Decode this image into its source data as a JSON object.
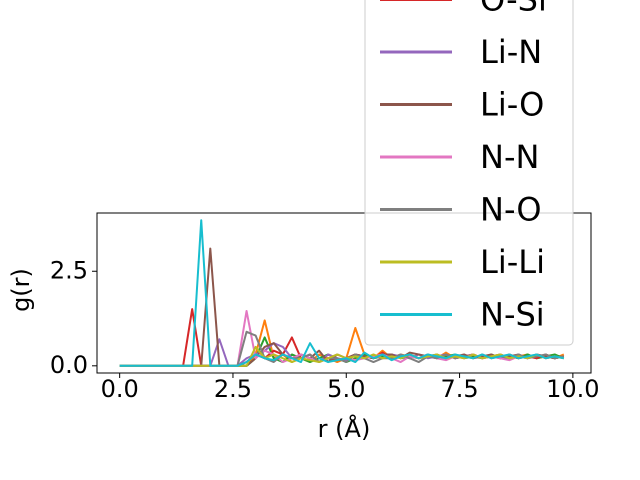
{
  "chart_data": {
    "type": "line",
    "xlabel": "r (Å)",
    "ylabel": "g(r)",
    "x": [
      0,
      0.2,
      0.4,
      0.6,
      0.8,
      1.0,
      1.2,
      1.4,
      1.6,
      1.8,
      2.0,
      2.2,
      2.4,
      2.6,
      2.8,
      3.0,
      3.2,
      3.4,
      3.6,
      3.8,
      4.0,
      4.2,
      4.4,
      4.6,
      4.8,
      5.0,
      5.2,
      5.4,
      5.6,
      5.8,
      6.0,
      6.2,
      6.4,
      6.6,
      6.8,
      7.0,
      7.2,
      7.4,
      7.6,
      7.8,
      8.0,
      8.2,
      8.4,
      8.6,
      8.8,
      9.0,
      9.2,
      9.4,
      9.6,
      9.8
    ],
    "xlim": [
      -0.5,
      10.4
    ],
    "ylim": [
      -0.19,
      4.04
    ],
    "xticks": [
      {
        "value": 0,
        "label": "0.0"
      },
      {
        "value": 2.5,
        "label": "2.5"
      },
      {
        "value": 5,
        "label": "5.0"
      },
      {
        "value": 7.5,
        "label": "7.5"
      },
      {
        "value": 10,
        "label": "10.0"
      }
    ],
    "yticks": [
      {
        "value": 0,
        "label": "0.0"
      },
      {
        "value": 2.5,
        "label": "2.5"
      }
    ],
    "legend": "upper right",
    "series": [
      {
        "color": "#ff7f0e",
        "values": [
          0,
          0,
          0,
          0,
          0,
          0,
          0,
          0,
          0,
          0,
          0,
          0,
          0,
          0,
          0,
          0.3,
          1.2,
          0.2,
          0.3,
          0.1,
          0.2,
          0.1,
          0.3,
          0.2,
          0.1,
          0.2,
          1.0,
          0.3,
          0.2,
          0.4,
          0.2,
          0.3,
          0.25,
          0.2,
          0.3,
          0.2,
          0.35,
          0.2,
          0.25,
          0.3,
          0.2,
          0.25,
          0.3,
          0.2,
          0.25,
          0.3,
          0.2,
          0.25,
          0.2,
          0.3
        ]
      },
      {
        "color": "#2ca02c",
        "values": [
          0,
          0,
          0,
          0,
          0,
          0,
          0,
          0,
          0,
          0,
          0,
          0,
          0,
          0,
          0,
          0.2,
          0.75,
          0.2,
          0.1,
          0.3,
          0.2,
          0.1,
          0.2,
          0.3,
          0.2,
          0.1,
          0.2,
          0.3,
          0.2,
          0.25,
          0.3,
          0.2,
          0.25,
          0.2,
          0.3,
          0.2,
          0.25,
          0.3,
          0.2,
          0.25,
          0.2,
          0.3,
          0.2,
          0.25,
          0.2,
          0.3,
          0.2,
          0.25,
          0.3,
          0.2
        ]
      },
      {
        "name": "O-Si",
        "color": "#d62728",
        "values": [
          0,
          0,
          0,
          0,
          0,
          0,
          0,
          0,
          1.5,
          0,
          0,
          0,
          0,
          0,
          0.1,
          0.3,
          0.2,
          0.4,
          0.3,
          0.75,
          0.2,
          0.3,
          0.1,
          0.2,
          0.15,
          0.2,
          0.3,
          0.25,
          0.2,
          0.35,
          0.2,
          0.25,
          0.3,
          0.2,
          0.25,
          0.2,
          0.3,
          0.2,
          0.25,
          0.3,
          0.2,
          0.25,
          0.2,
          0.3,
          0.2,
          0.25,
          0.2,
          0.3,
          0.2,
          0.25
        ]
      },
      {
        "name": "Li-N",
        "color": "#9467bd",
        "values": [
          0,
          0,
          0,
          0,
          0,
          0,
          0,
          0,
          0,
          0,
          0,
          0.7,
          0,
          0,
          0.2,
          0.3,
          0.4,
          0.6,
          0.5,
          0.2,
          0.3,
          0.2,
          0.1,
          0.3,
          0.2,
          0.15,
          0.3,
          0.2,
          0.25,
          0.2,
          0.3,
          0.25,
          0.2,
          0.3,
          0.2,
          0.25,
          0.3,
          0.2,
          0.25,
          0.3,
          0.2,
          0.25,
          0.3,
          0.2,
          0.25,
          0.2,
          0.3,
          0.25,
          0.2,
          0.25
        ]
      },
      {
        "name": "Li-O",
        "color": "#8c564b",
        "values": [
          0,
          0,
          0,
          0,
          0,
          0,
          0,
          0,
          0,
          0,
          3.1,
          0,
          0,
          0,
          0,
          0.2,
          0.5,
          0.6,
          0.3,
          0.2,
          0.3,
          0.2,
          0.4,
          0.1,
          0.3,
          0.2,
          0.3,
          0.25,
          0.2,
          0.3,
          0.3,
          0.2,
          0.35,
          0.3,
          0.25,
          0.3,
          0.2,
          0.25,
          0.3,
          0.2,
          0.25,
          0.3,
          0.2,
          0.25,
          0.3,
          0.2,
          0.3,
          0.25,
          0.2,
          0.25
        ]
      },
      {
        "name": "N-N",
        "color": "#e377c2",
        "values": [
          0,
          0,
          0,
          0,
          0,
          0,
          0,
          0,
          0,
          0,
          0,
          0,
          0,
          0,
          1.45,
          0.2,
          0.4,
          0.3,
          0.1,
          0.2,
          0.3,
          0.2,
          0.1,
          0.2,
          0.3,
          0.2,
          0.15,
          0.2,
          0.25,
          0.3,
          0.2,
          0.1,
          0.25,
          0.2,
          0.3,
          0.2,
          0.15,
          0.25,
          0.2,
          0.3,
          0.2,
          0.25,
          0.2,
          0.15,
          0.25,
          0.2,
          0.3,
          0.2,
          0.25,
          0.2
        ]
      },
      {
        "name": "N-O",
        "color": "#7f7f7f",
        "values": [
          0,
          0,
          0,
          0,
          0,
          0,
          0,
          0,
          0,
          0,
          0,
          0,
          0,
          0,
          0.9,
          0.8,
          0.2,
          0.1,
          0.3,
          0.2,
          0.2,
          0.3,
          0.1,
          0.2,
          0.2,
          0.1,
          0.3,
          0.2,
          0.1,
          0.2,
          0.2,
          0.3,
          0.2,
          0.1,
          0.25,
          0.2,
          0.3,
          0.2,
          0.25,
          0.2,
          0.3,
          0.2,
          0.25,
          0.2,
          0.3,
          0.2,
          0.25,
          0.3,
          0.2,
          0.25
        ]
      },
      {
        "name": "Li-Li",
        "color": "#bcbd22",
        "values": [
          0,
          0,
          0,
          0,
          0,
          0,
          0,
          0,
          0,
          0,
          0,
          0,
          0,
          0,
          0,
          0.5,
          0.2,
          0.3,
          0.2,
          0.1,
          0.2,
          0.15,
          0.1,
          0.2,
          0.3,
          0.2,
          0.25,
          0.2,
          0.3,
          0.2,
          0.25,
          0.2,
          0.3,
          0.2,
          0.25,
          0.3,
          0.2,
          0.25,
          0.2,
          0.3,
          0.2,
          0.25,
          0.3,
          0.2,
          0.25,
          0.2,
          0.3,
          0.2,
          0.25,
          0.2
        ]
      },
      {
        "name": "N-Si",
        "color": "#17becf",
        "values": [
          0,
          0,
          0,
          0,
          0,
          0,
          0,
          0,
          0,
          3.85,
          0,
          0,
          0,
          0,
          0.1,
          0.3,
          0.2,
          0.15,
          0.3,
          0.2,
          0.1,
          0.6,
          0.2,
          0.1,
          0.15,
          0.2,
          0.1,
          0.35,
          0.2,
          0.3,
          0.15,
          0.25,
          0.3,
          0.2,
          0.3,
          0.25,
          0.2,
          0.3,
          0.25,
          0.2,
          0.3,
          0.2,
          0.25,
          0.3,
          0.2,
          0.25,
          0.3,
          0.2,
          0.25,
          0.2
        ]
      }
    ]
  }
}
